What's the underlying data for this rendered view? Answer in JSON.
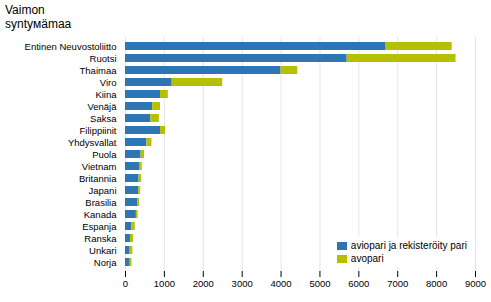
{
  "chart_data": {
    "type": "bar",
    "title": "Vaimon\nsyntyмämaa",
    "orientation": "horizontal",
    "stacked": true,
    "categories": [
      "Entinen Neuvostoliitto",
      "Ruotsi",
      "Thaimaa",
      "Viro",
      "Kiina",
      "Venäjä",
      "Saksa",
      "Filippiinit",
      "Yhdysvallat",
      "Puola",
      "Vietnam",
      "Britannia",
      "Japani",
      "Brasilia",
      "Kanada",
      "Espanja",
      "Ranska",
      "Unkari",
      "Norja"
    ],
    "series": [
      {
        "name": "aviopari ja rekisteröity pari",
        "color": "#2e75b6",
        "values": [
          6700,
          5700,
          4000,
          1200,
          900,
          700,
          650,
          900,
          550,
          400,
          360,
          350,
          340,
          310,
          280,
          160,
          130,
          120,
          120
        ]
      },
      {
        "name": "avopari",
        "color": "#b5c000",
        "values": [
          1700,
          2800,
          430,
          1300,
          200,
          200,
          220,
          130,
          130,
          90,
          70,
          60,
          50,
          50,
          45,
          90,
          80,
          70,
          45
        ]
      }
    ],
    "xlim": [
      0,
      9000
    ],
    "xticks": [
      0,
      1000,
      2000,
      3000,
      4000,
      5000,
      6000,
      7000,
      8000,
      9000
    ],
    "grid": true,
    "legend": "lower right"
  }
}
